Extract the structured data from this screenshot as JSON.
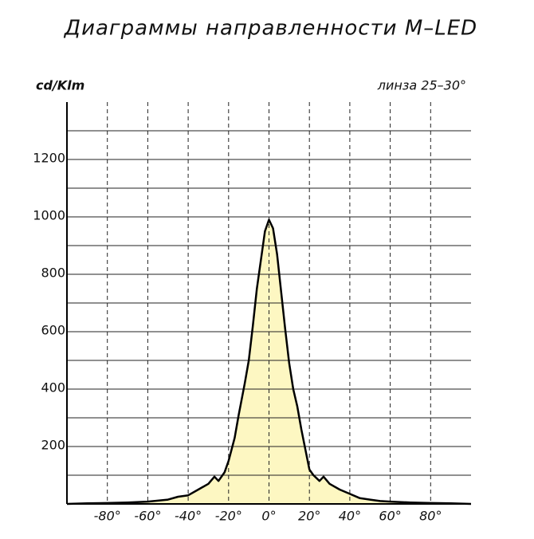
{
  "chart_data": {
    "type": "area",
    "title": "Диаграммы  направленности M–LED",
    "y_label": "cd/Klm",
    "annotation": "линза 25–30°",
    "x": [
      -100,
      -90,
      -80,
      -70,
      -60,
      -50,
      -45,
      -40,
      -35,
      -30,
      -27,
      -25,
      -22,
      -20,
      -17,
      -15,
      -12,
      -10,
      -8,
      -6,
      -4,
      -2,
      0,
      2,
      4,
      6,
      8,
      10,
      12,
      14,
      16,
      18,
      20,
      22,
      25,
      27,
      30,
      35,
      40,
      45,
      50,
      55,
      60,
      70,
      80,
      90,
      100
    ],
    "values": [
      0,
      2,
      3,
      5,
      8,
      15,
      25,
      30,
      50,
      70,
      95,
      80,
      110,
      150,
      230,
      310,
      420,
      500,
      620,
      750,
      850,
      950,
      990,
      960,
      870,
      740,
      610,
      490,
      400,
      340,
      260,
      190,
      120,
      100,
      80,
      95,
      70,
      50,
      35,
      20,
      15,
      10,
      8,
      5,
      3,
      2,
      0
    ],
    "color": "#fdf7c2",
    "line_color": "#000000",
    "xlim": [
      -100,
      100
    ],
    "xticks": [
      {
        "value": -80,
        "label": "-80°"
      },
      {
        "value": -60,
        "label": "-60°"
      },
      {
        "value": -40,
        "label": "-40°"
      },
      {
        "value": -20,
        "label": "-20°"
      },
      {
        "value": 0,
        "label": "0°"
      },
      {
        "value": 20,
        "label": "20°"
      },
      {
        "value": 40,
        "label": "40°"
      },
      {
        "value": 60,
        "label": "60°"
      },
      {
        "value": 80,
        "label": "80°"
      }
    ],
    "ylim": [
      0,
      1400
    ],
    "yticks": [
      200,
      400,
      600,
      800,
      1000,
      1200
    ],
    "yminor": [
      100,
      300,
      500,
      700,
      900,
      1100,
      1300
    ],
    "grid": true
  }
}
